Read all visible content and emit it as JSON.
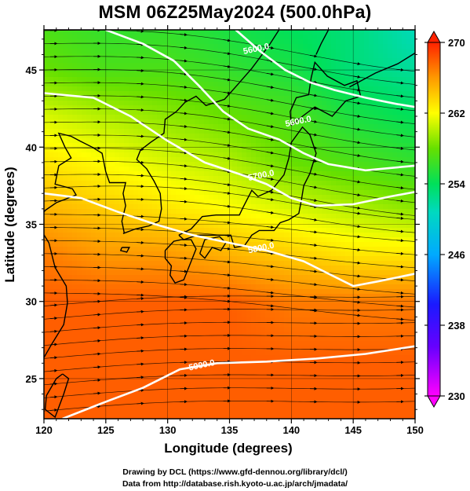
{
  "title": "MSM 06Z25May2024 (500.0hPa)",
  "footer": {
    "line1": "Drawing by DCL (https://www.gfd-dennou.org/library/dcl/)",
    "line2": "Data from http://database.rish.kyoto-u.ac.jp/arch/jmadata/"
  },
  "chart_data": {
    "type": "heatmap",
    "title": "MSM 06Z25May2024 (500.0hPa)",
    "xlabel": "Longitude (degrees)",
    "ylabel": "Latitude  (degrees)",
    "xlim": [
      120,
      150
    ],
    "ylim": [
      22.4,
      47.6
    ],
    "x_ticks": [
      120,
      125,
      130,
      135,
      140,
      145,
      150
    ],
    "y_ticks": [
      25,
      30,
      35,
      40,
      45
    ],
    "colorbar": {
      "min": 230,
      "max": 270,
      "ticks": [
        230,
        238,
        246,
        254,
        262,
        270
      ],
      "colors": [
        "#ff00ff",
        "#1a1aff",
        "#00bfff",
        "#00e07a",
        "#7fe000",
        "#ffff00",
        "#ff9900",
        "#ff2200"
      ]
    },
    "temperature_field": {
      "description_units": "K",
      "rows": [
        {
          "lat": 47.6,
          "values": [
            257,
            256,
            256,
            255,
            254,
            253,
            251
          ]
        },
        {
          "lat": 45,
          "values": [
            258,
            257,
            257,
            256,
            255,
            253,
            252
          ]
        },
        {
          "lat": 42,
          "values": [
            261,
            260,
            259,
            258,
            257,
            255,
            254
          ]
        },
        {
          "lat": 39,
          "values": [
            263,
            262,
            261,
            260,
            258,
            257,
            256
          ]
        },
        {
          "lat": 36,
          "values": [
            265,
            264,
            263,
            262,
            261,
            260,
            259
          ]
        },
        {
          "lat": 33,
          "values": [
            267,
            266,
            266,
            265,
            264,
            263,
            263
          ]
        },
        {
          "lat": 30,
          "values": [
            268,
            268,
            268,
            268,
            267,
            267,
            267
          ]
        },
        {
          "lat": 26,
          "values": [
            268,
            268,
            268,
            268,
            268,
            268,
            268
          ]
        },
        {
          "lat": 22.4,
          "values": [
            268,
            268,
            268,
            268,
            268,
            268,
            268
          ]
        }
      ],
      "row_lons": [
        120,
        125,
        130,
        135,
        140,
        145,
        150
      ]
    },
    "contours": [
      {
        "label": "5900.0",
        "points": [
          [
            121.5,
            22.4
          ],
          [
            125,
            23.5
          ],
          [
            128,
            24.4
          ],
          [
            131,
            25.6
          ],
          [
            134,
            26.0
          ],
          [
            138,
            26.1
          ],
          [
            142,
            26.3
          ],
          [
            146,
            26.6
          ],
          [
            150,
            27.1
          ]
        ]
      },
      {
        "label": "5800.0",
        "points": [
          [
            120,
            37.0
          ],
          [
            123,
            36.7
          ],
          [
            126,
            35.8
          ],
          [
            129,
            35.0
          ],
          [
            132,
            34.3
          ],
          [
            135,
            33.8
          ],
          [
            138,
            33.3
          ],
          [
            141,
            32.6
          ],
          [
            143,
            31.8
          ],
          [
            145,
            31.0
          ],
          [
            147,
            31.3
          ],
          [
            150,
            31.8
          ]
        ]
      },
      {
        "label": "5700.0",
        "points": [
          [
            120,
            43.5
          ],
          [
            124,
            43.2
          ],
          [
            127,
            42.0
          ],
          [
            130,
            40.4
          ],
          [
            133,
            39.0
          ],
          [
            136,
            38.2
          ],
          [
            138,
            37.6
          ],
          [
            140,
            36.7
          ],
          [
            142,
            36.2
          ],
          [
            145,
            36.3
          ],
          [
            148,
            36.8
          ],
          [
            150,
            37.1
          ]
        ]
      },
      {
        "label": "5600.0",
        "points": [
          [
            125,
            47.6
          ],
          [
            128,
            46.7
          ],
          [
            130.5,
            45.6
          ],
          [
            132.5,
            44.0
          ],
          [
            134.5,
            42.3
          ],
          [
            136.5,
            41.2
          ],
          [
            139,
            40.5
          ],
          [
            141,
            39.6
          ],
          [
            143,
            38.9
          ],
          [
            146,
            38.5
          ],
          [
            150,
            38.8
          ]
        ]
      },
      {
        "label": "",
        "points": [
          [
            135.5,
            47.6
          ],
          [
            137.5,
            46.2
          ],
          [
            139.5,
            45.0
          ],
          [
            141.5,
            44.2
          ],
          [
            143.5,
            43.7
          ],
          [
            146,
            43.2
          ],
          [
            148.5,
            42.8
          ],
          [
            150,
            42.6
          ]
        ]
      }
    ],
    "contour_label_positions": [
      {
        "label": "5900.0",
        "lon": 132.8,
        "lat": 25.7
      },
      {
        "label": "5800.0",
        "lon": 137.6,
        "lat": 33.3
      },
      {
        "label": "5700.0",
        "lon": 137.6,
        "lat": 38.0
      },
      {
        "label": "5600.0",
        "lon": 140.6,
        "lat": 41.5
      },
      {
        "label": "5600.0",
        "lon": 137.2,
        "lat": 46.2
      }
    ],
    "grid": true,
    "coastlines": [
      [
        [
          126.5,
          34.4
        ],
        [
          126.3,
          35.2
        ],
        [
          126.6,
          36.2
        ],
        [
          126.4,
          37.0
        ],
        [
          126.6,
          37.7
        ],
        [
          125.3,
          37.7
        ],
        [
          125.0,
          38.4
        ],
        [
          124.7,
          39.6
        ],
        [
          123.9,
          40.0
        ],
        [
          122.9,
          40.4
        ],
        [
          122.2,
          40.7
        ],
        [
          121.2,
          40.9
        ],
        [
          121.7,
          40.0
        ],
        [
          122.2,
          39.3
        ],
        [
          121.6,
          39.0
        ],
        [
          121.2,
          38.8
        ],
        [
          120.9,
          37.6
        ],
        [
          122.3,
          37.3
        ],
        [
          122.6,
          36.9
        ],
        [
          121.0,
          36.4
        ],
        [
          120.1,
          35.9
        ],
        [
          119.4,
          35.1
        ],
        [
          120.4,
          33.8
        ],
        [
          120.9,
          32.2
        ],
        [
          121.8,
          31.0
        ],
        [
          121.9,
          29.9
        ],
        [
          121.6,
          28.5
        ],
        [
          120.6,
          27.2
        ],
        [
          119.6,
          25.8
        ]
      ],
      [
        [
          126.4,
          34.4
        ],
        [
          127.4,
          34.7
        ],
        [
          128.5,
          34.9
        ],
        [
          129.3,
          35.2
        ],
        [
          129.5,
          36.0
        ],
        [
          129.4,
          37.0
        ],
        [
          128.9,
          37.8
        ],
        [
          128.3,
          38.6
        ],
        [
          127.5,
          39.2
        ],
        [
          127.8,
          39.8
        ],
        [
          128.6,
          40.3
        ],
        [
          129.7,
          40.9
        ],
        [
          129.8,
          41.8
        ],
        [
          130.7,
          42.3
        ],
        [
          131.4,
          42.9
        ],
        [
          132.3,
          43.3
        ],
        [
          133.1,
          42.7
        ],
        [
          134.6,
          43.1
        ],
        [
          135.6,
          44.0
        ],
        [
          136.8,
          45.1
        ],
        [
          138.2,
          46.6
        ],
        [
          139.0,
          47.6
        ]
      ],
      [
        [
          129.8,
          33.3
        ],
        [
          130.5,
          33.9
        ],
        [
          131.1,
          34.0
        ],
        [
          131.9,
          34.0
        ],
        [
          132.3,
          33.4
        ],
        [
          131.7,
          32.2
        ],
        [
          131.3,
          31.4
        ],
        [
          130.6,
          31.2
        ],
        [
          130.2,
          31.7
        ],
        [
          130.3,
          32.3
        ],
        [
          129.8,
          32.8
        ],
        [
          129.8,
          33.3
        ]
      ],
      [
        [
          130.9,
          34.3
        ],
        [
          131.9,
          34.7
        ],
        [
          132.8,
          35.5
        ],
        [
          133.9,
          35.6
        ],
        [
          135.2,
          35.6
        ],
        [
          135.8,
          35.6
        ],
        [
          136.1,
          36.1
        ],
        [
          136.8,
          37.2
        ],
        [
          137.3,
          36.8
        ],
        [
          138.4,
          37.2
        ],
        [
          139.4,
          38.2
        ],
        [
          139.8,
          39.3
        ],
        [
          140.0,
          40.3
        ],
        [
          140.9,
          41.3
        ],
        [
          141.5,
          40.8
        ],
        [
          142.0,
          39.6
        ],
        [
          141.5,
          38.3
        ],
        [
          141.0,
          37.5
        ],
        [
          140.8,
          36.5
        ],
        [
          140.6,
          35.7
        ],
        [
          139.8,
          35.3
        ],
        [
          139.1,
          35.1
        ],
        [
          138.6,
          34.6
        ],
        [
          137.4,
          34.6
        ],
        [
          136.8,
          34.3
        ],
        [
          136.2,
          33.6
        ],
        [
          135.4,
          33.5
        ],
        [
          135.1,
          34.3
        ],
        [
          133.8,
          34.3
        ],
        [
          132.4,
          34.3
        ],
        [
          131.3,
          34.0
        ],
        [
          130.9,
          34.3
        ]
      ],
      [
        [
          132.6,
          33.1
        ],
        [
          133.0,
          32.8
        ],
        [
          133.6,
          33.5
        ],
        [
          134.3,
          33.3
        ],
        [
          134.7,
          33.8
        ],
        [
          134.2,
          34.2
        ],
        [
          133.0,
          34.0
        ],
        [
          132.6,
          33.1
        ]
      ],
      [
        [
          140.0,
          41.4
        ],
        [
          139.9,
          42.3
        ],
        [
          140.4,
          43.2
        ],
        [
          141.4,
          43.4
        ],
        [
          141.6,
          44.5
        ],
        [
          141.9,
          45.5
        ],
        [
          142.9,
          44.6
        ],
        [
          144.3,
          44.0
        ],
        [
          145.3,
          44.3
        ],
        [
          145.6,
          43.3
        ],
        [
          144.4,
          43.0
        ],
        [
          143.3,
          42.0
        ],
        [
          141.9,
          42.6
        ],
        [
          140.9,
          42.0
        ],
        [
          140.0,
          41.4
        ]
      ],
      [
        [
          142.0,
          46.0
        ],
        [
          142.4,
          46.7
        ],
        [
          143.0,
          47.6
        ]
      ],
      [
        [
          144.7,
          43.9
        ],
        [
          146.8,
          44.8
        ],
        [
          148.6,
          45.4
        ],
        [
          150.0,
          46.1
        ]
      ],
      [
        [
          121.5,
          25.3
        ],
        [
          122.0,
          25.0
        ],
        [
          121.6,
          24.0
        ],
        [
          120.9,
          22.5
        ],
        [
          120.1,
          23.0
        ],
        [
          120.2,
          23.9
        ],
        [
          121.0,
          25.0
        ],
        [
          121.5,
          25.3
        ]
      ],
      [
        [
          126.3,
          33.5
        ],
        [
          126.9,
          33.5
        ],
        [
          126.7,
          33.2
        ],
        [
          126.2,
          33.3
        ],
        [
          126.3,
          33.5
        ]
      ]
    ],
    "wind": {
      "grid_step_deg": 1.0,
      "note": "streamlines predominantly westerly, stronger in north"
    }
  }
}
